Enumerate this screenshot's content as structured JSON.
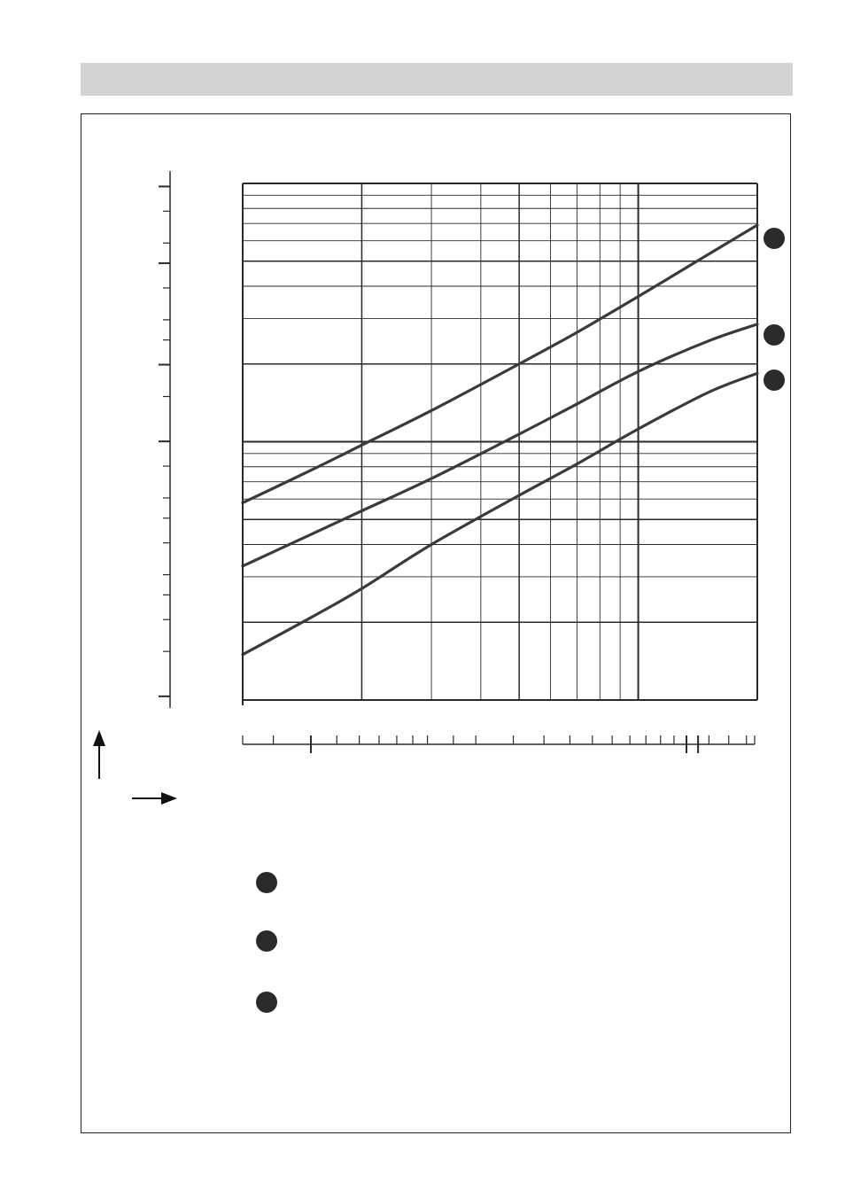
{
  "chart_data": {
    "type": "line",
    "title": "",
    "xlabel": "",
    "ylabel": "",
    "x_scale": "log",
    "y_scale": "log",
    "xlim": [
      1,
      20
    ],
    "ylim": [
      0.1,
      10
    ],
    "grid": true,
    "legend": "right",
    "series": [
      {
        "x": [
          1,
          1.5,
          2,
          3,
          5,
          7,
          10,
          15,
          20
        ],
        "y": [
          0.58,
          0.78,
          0.97,
          1.32,
          2.0,
          2.65,
          3.65,
          5.3,
          6.9
        ]
      },
      {
        "x": [
          1,
          1.5,
          2,
          3,
          5,
          7,
          10,
          15,
          20
        ],
        "y": [
          0.33,
          0.44,
          0.54,
          0.72,
          1.07,
          1.4,
          1.87,
          2.45,
          2.85
        ]
      },
      {
        "x": [
          1,
          1.5,
          2,
          3,
          5,
          7,
          10,
          15,
          20
        ],
        "y": [
          0.15,
          0.21,
          0.27,
          0.4,
          0.62,
          0.82,
          1.12,
          1.55,
          1.84
        ]
      }
    ]
  },
  "colors": {
    "curve": "#3a3a3a",
    "grid": "#2a2a2a",
    "header": "#d3d3d3",
    "marker": "#2a2a2a"
  },
  "icons": {
    "y_axis_arrow": "arrow-up-icon",
    "x_axis_arrow": "arrow-right-icon"
  }
}
